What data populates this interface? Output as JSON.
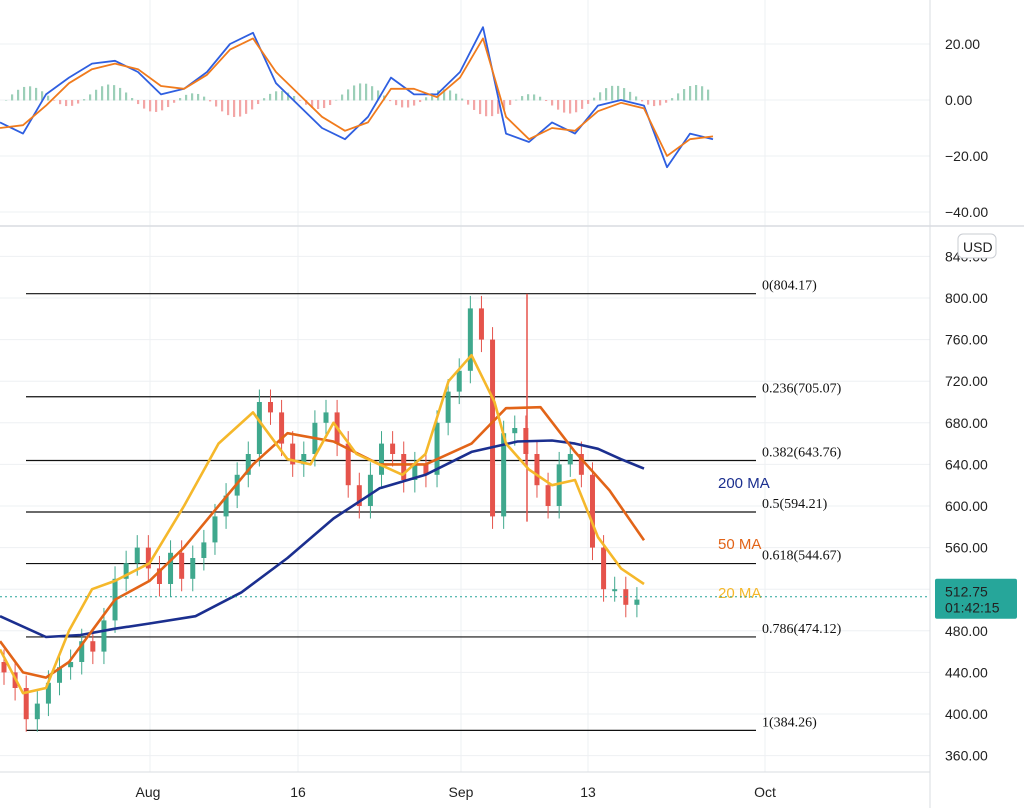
{
  "chart_data": [
    {
      "type": "line",
      "title": "",
      "yticks": [
        "20.00",
        "0.00",
        "−20.00",
        "−40.00"
      ],
      "ylim": [
        -42,
        33
      ],
      "x": [
        0,
        4,
        8,
        12,
        16,
        20,
        24,
        28,
        32,
        36,
        40,
        44,
        48,
        52,
        56,
        60,
        64,
        68,
        72,
        76,
        80,
        84,
        88
      ],
      "series": [
        {
          "name": "",
          "color": "#2f5fe0",
          "values": [
            -8,
            -12,
            2,
            8,
            13,
            14,
            10,
            2,
            4,
            10,
            20,
            24,
            6,
            -2,
            -10,
            -14,
            -6,
            8,
            2,
            2,
            10,
            26,
            -12
          ]
        },
        {
          "name": "",
          "color": "#f07b1d",
          "values": [
            -10,
            -9,
            -2,
            6,
            11,
            13,
            11,
            5,
            4,
            9,
            18,
            22,
            10,
            2,
            -6,
            -11,
            -8,
            4,
            4,
            1,
            8,
            22,
            -6
          ]
        }
      ],
      "series_tail": [
        {
          "values": [
            -15,
            -8,
            -12,
            -2,
            0,
            -2,
            -24,
            -12,
            -14
          ]
        },
        {
          "values": [
            -14,
            -10,
            -11,
            -4,
            -1,
            -3,
            -20,
            -14,
            -13
          ]
        }
      ],
      "tail_x": [
        92,
        96,
        100,
        104,
        108,
        112,
        116,
        120,
        124
      ]
    },
    {
      "type": "line",
      "currency": "USD",
      "yticks": [
        "840.00",
        "800.00",
        "760.00",
        "720.00",
        "680.00",
        "640.00",
        "600.00",
        "560.00",
        "520.00",
        "480.00",
        "440.00",
        "400.00",
        "360.00"
      ],
      "ylim": [
        345,
        865
      ],
      "xticks": [
        "Aug",
        "16",
        "Sep",
        "13",
        "Oct"
      ],
      "fib_levels": [
        {
          "label": "0(804.17)",
          "value": 804.17
        },
        {
          "label": "0.236(705.07)",
          "value": 705.07
        },
        {
          "label": "0.382(643.76)",
          "value": 643.76
        },
        {
          "label": "0.5(594.21)",
          "value": 594.21
        },
        {
          "label": "0.618(544.67)",
          "value": 544.67
        },
        {
          "label": "0.786(474.12)",
          "value": 474.12
        },
        {
          "label": "1(384.26)",
          "value": 384.26
        }
      ],
      "moving_averages": [
        {
          "name": "200 MA",
          "color": "#1b2f8f",
          "x": [
            0,
            8,
            14,
            20,
            26,
            34,
            42,
            50,
            58,
            66,
            74,
            82,
            90,
            96,
            100,
            104,
            108,
            112
          ],
          "values": [
            494,
            474,
            476,
            482,
            487,
            494,
            517,
            550,
            588,
            617,
            630,
            652,
            662,
            663,
            660,
            655,
            645,
            636
          ]
        },
        {
          "name": "50 MA",
          "color": "#e26418",
          "x": [
            0,
            4,
            8,
            12,
            16,
            20,
            26,
            32,
            38,
            44,
            50,
            58,
            66,
            74,
            82,
            88,
            94,
            100,
            106,
            112
          ],
          "values": [
            470,
            440,
            435,
            450,
            480,
            510,
            528,
            560,
            600,
            640,
            670,
            662,
            640,
            640,
            660,
            694,
            695,
            652,
            615,
            567
          ]
        },
        {
          "name": "20 MA",
          "color": "#f5b82b",
          "x": [
            0,
            4,
            8,
            12,
            16,
            20,
            26,
            32,
            38,
            44,
            50,
            54,
            58,
            62,
            66,
            70,
            74,
            78,
            82,
            86,
            88,
            92,
            96,
            100,
            104,
            108,
            112
          ],
          "values": [
            462,
            420,
            425,
            480,
            520,
            528,
            545,
            600,
            660,
            690,
            645,
            640,
            680,
            650,
            640,
            630,
            650,
            720,
            745,
            700,
            660,
            635,
            620,
            625,
            570,
            540,
            525
          ]
        }
      ],
      "last_price": "512.75",
      "last_price_value": 512.75,
      "countdown": "01:42:15",
      "candles": {
        "x_start": 0,
        "x_end": 112,
        "closes": [
          440,
          425,
          395,
          410,
          430,
          445,
          450,
          470,
          460,
          490,
          530,
          545,
          560,
          540,
          525,
          555,
          530,
          550,
          565,
          590,
          610,
          630,
          650,
          700,
          690,
          660,
          640,
          650,
          680,
          690,
          660,
          620,
          600,
          630,
          660,
          650,
          625,
          640,
          630,
          680,
          710,
          730,
          790,
          760,
          590,
          670,
          675,
          650,
          620,
          600,
          640,
          650,
          630,
          560,
          520,
          520,
          505,
          510
        ]
      }
    }
  ]
}
